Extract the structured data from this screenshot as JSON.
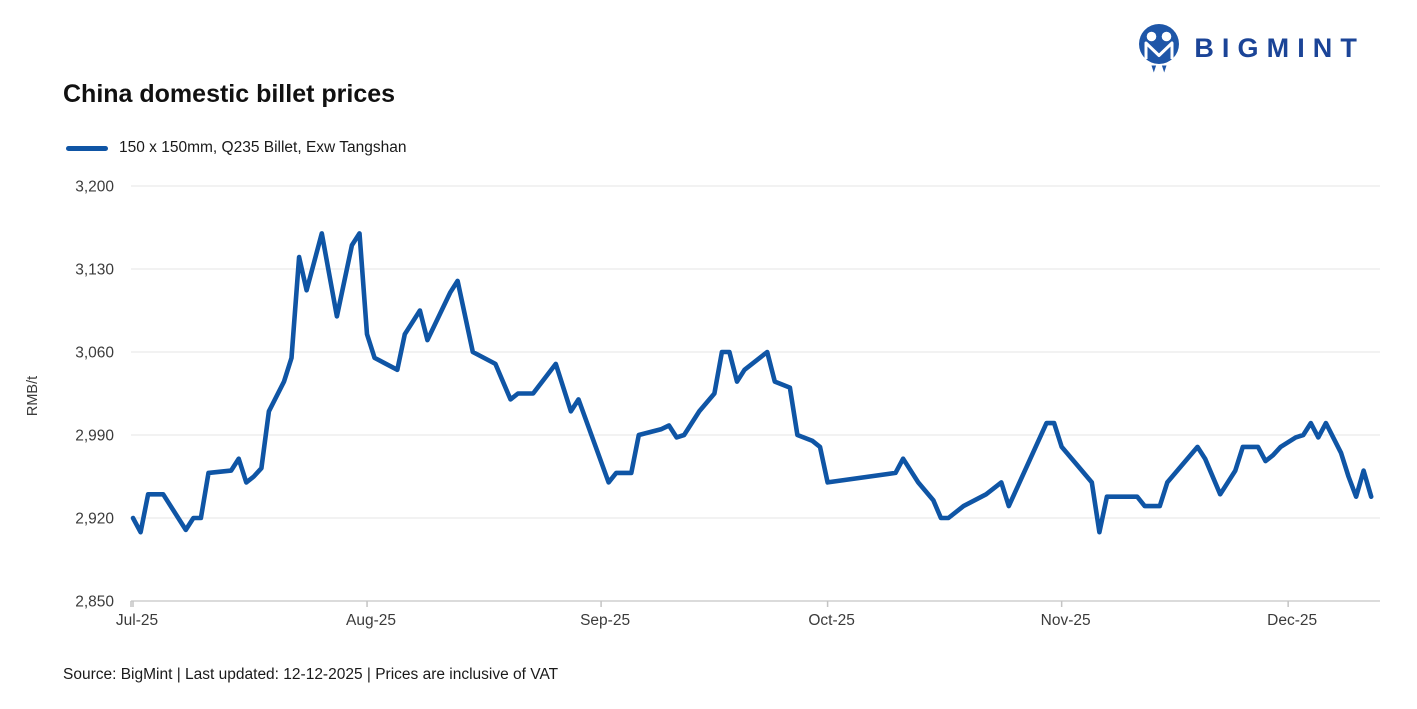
{
  "brand": {
    "name": "BIGMINT"
  },
  "header": {
    "title": "China domestic billet prices"
  },
  "legend": {
    "label": "150 x 150mm, Q235 Billet, Exw Tangshan"
  },
  "footer": {
    "text": "Source: BigMint | Last updated: 12-12-2025 | Prices are inclusive of VAT"
  },
  "colors": {
    "line": "#0F55A5",
    "logo": "#1E56A8",
    "wordmark": "#1B4497",
    "grid": "#e4e4e4",
    "axis": "#cfcfcf",
    "tick_text": "#3b3b3b"
  },
  "chart_data": {
    "type": "line",
    "title": "China domestic billet prices",
    "xlabel": "",
    "ylabel": "RMB/t",
    "ylim": [
      2850,
      3200
    ],
    "grid": "horizontal",
    "legend_position": "top-left",
    "yticks": [
      {
        "v": 2850,
        "label": "2,850"
      },
      {
        "v": 2920,
        "label": "2,920"
      },
      {
        "v": 2990,
        "label": "2,990"
      },
      {
        "v": 3060,
        "label": "3,060"
      },
      {
        "v": 3130,
        "label": "3,130"
      },
      {
        "v": 3200,
        "label": "3,200"
      }
    ],
    "xticks": [
      {
        "t": 0,
        "label": "Jul-25"
      },
      {
        "t": 31,
        "label": "Aug-25"
      },
      {
        "t": 62,
        "label": "Sep-25"
      },
      {
        "t": 92,
        "label": "Oct-25"
      },
      {
        "t": 123,
        "label": "Nov-25"
      },
      {
        "t": 153,
        "label": "Dec-25"
      }
    ],
    "series": [
      {
        "name": "150 x 150mm, Q235 Billet, Exw Tangshan",
        "color": "#0F55A5",
        "points": [
          [
            "2025-07-01",
            2920
          ],
          [
            "2025-07-02",
            2908
          ],
          [
            "2025-07-03",
            2940
          ],
          [
            "2025-07-05",
            2940
          ],
          [
            "2025-07-08",
            2910
          ],
          [
            "2025-07-09",
            2920
          ],
          [
            "2025-07-10",
            2920
          ],
          [
            "2025-07-11",
            2958
          ],
          [
            "2025-07-14",
            2960
          ],
          [
            "2025-07-15",
            2970
          ],
          [
            "2025-07-16",
            2950
          ],
          [
            "2025-07-17",
            2955
          ],
          [
            "2025-07-18",
            2962
          ],
          [
            "2025-07-19",
            3010
          ],
          [
            "2025-07-21",
            3035
          ],
          [
            "2025-07-22",
            3055
          ],
          [
            "2025-07-23",
            3140
          ],
          [
            "2025-07-24",
            3112
          ],
          [
            "2025-07-26",
            3160
          ],
          [
            "2025-07-28",
            3090
          ],
          [
            "2025-07-30",
            3150
          ],
          [
            "2025-07-31",
            3160
          ],
          [
            "2025-08-01",
            3075
          ],
          [
            "2025-08-02",
            3055
          ],
          [
            "2025-08-05",
            3045
          ],
          [
            "2025-08-06",
            3075
          ],
          [
            "2025-08-08",
            3095
          ],
          [
            "2025-08-09",
            3070
          ],
          [
            "2025-08-12",
            3110
          ],
          [
            "2025-08-13",
            3120
          ],
          [
            "2025-08-15",
            3060
          ],
          [
            "2025-08-18",
            3050
          ],
          [
            "2025-08-20",
            3020
          ],
          [
            "2025-08-21",
            3025
          ],
          [
            "2025-08-23",
            3025
          ],
          [
            "2025-08-26",
            3050
          ],
          [
            "2025-08-28",
            3010
          ],
          [
            "2025-08-29",
            3020
          ],
          [
            "2025-09-02",
            2950
          ],
          [
            "2025-09-03",
            2958
          ],
          [
            "2025-09-05",
            2958
          ],
          [
            "2025-09-06",
            2990
          ],
          [
            "2025-09-09",
            2995
          ],
          [
            "2025-09-10",
            2998
          ],
          [
            "2025-09-11",
            2988
          ],
          [
            "2025-09-12",
            2990
          ],
          [
            "2025-09-14",
            3010
          ],
          [
            "2025-09-16",
            3025
          ],
          [
            "2025-09-17",
            3060
          ],
          [
            "2025-09-18",
            3060
          ],
          [
            "2025-09-19",
            3035
          ],
          [
            "2025-09-20",
            3045
          ],
          [
            "2025-09-23",
            3060
          ],
          [
            "2025-09-24",
            3035
          ],
          [
            "2025-09-26",
            3030
          ],
          [
            "2025-09-27",
            2990
          ],
          [
            "2025-09-29",
            2985
          ],
          [
            "2025-09-30",
            2980
          ],
          [
            "2025-10-01",
            2950
          ],
          [
            "2025-10-10",
            2958
          ],
          [
            "2025-10-11",
            2970
          ],
          [
            "2025-10-13",
            2950
          ],
          [
            "2025-10-15",
            2935
          ],
          [
            "2025-10-16",
            2920
          ],
          [
            "2025-10-17",
            2920
          ],
          [
            "2025-10-19",
            2930
          ],
          [
            "2025-10-22",
            2940
          ],
          [
            "2025-10-24",
            2950
          ],
          [
            "2025-10-25",
            2930
          ],
          [
            "2025-10-30",
            3000
          ],
          [
            "2025-10-31",
            3000
          ],
          [
            "2025-11-01",
            2980
          ],
          [
            "2025-11-03",
            2965
          ],
          [
            "2025-11-05",
            2950
          ],
          [
            "2025-11-06",
            2908
          ],
          [
            "2025-11-07",
            2938
          ],
          [
            "2025-11-11",
            2938
          ],
          [
            "2025-11-12",
            2930
          ],
          [
            "2025-11-14",
            2930
          ],
          [
            "2025-11-15",
            2950
          ],
          [
            "2025-11-19",
            2980
          ],
          [
            "2025-11-20",
            2970
          ],
          [
            "2025-11-22",
            2940
          ],
          [
            "2025-11-24",
            2960
          ],
          [
            "2025-11-25",
            2980
          ],
          [
            "2025-11-27",
            2980
          ],
          [
            "2025-11-28",
            2968
          ],
          [
            "2025-11-29",
            2973
          ],
          [
            "2025-11-30",
            2980
          ],
          [
            "2025-12-02",
            2988
          ],
          [
            "2025-12-03",
            2990
          ],
          [
            "2025-12-04",
            3000
          ],
          [
            "2025-12-05",
            2988
          ],
          [
            "2025-12-06",
            3000
          ],
          [
            "2025-12-08",
            2975
          ],
          [
            "2025-12-09",
            2955
          ],
          [
            "2025-12-10",
            2938
          ],
          [
            "2025-12-11",
            2960
          ],
          [
            "2025-12-12",
            2938
          ]
        ]
      }
    ]
  }
}
